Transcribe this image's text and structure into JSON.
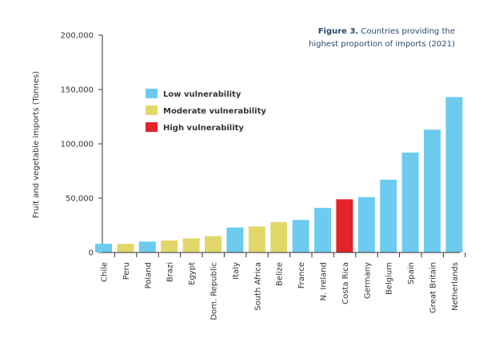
{
  "chart_data": {
    "type": "bar",
    "title_bold": "Figure 3.",
    "title_line1": "Countries providing the",
    "title_line2": "highest proportion of imports (2021)",
    "ylabel": "Fruit and vegetable imports (Tonnes)",
    "xlabel": "",
    "ylim": [
      0,
      200000
    ],
    "yticks": [
      0,
      50000,
      100000,
      150000,
      200000
    ],
    "ytick_labels": [
      "0",
      "50,000",
      "100,000",
      "150,000",
      "200,000"
    ],
    "grid": false,
    "legend_placement": "upper-left",
    "legend": [
      {
        "key": "low",
        "label": "Low vulnerability",
        "color": "#6ccbee"
      },
      {
        "key": "moderate",
        "label": "Moderate vulnerability",
        "color": "#e2d86a"
      },
      {
        "key": "high",
        "label": "High vulnerability",
        "color": "#e42229"
      }
    ],
    "categories": [
      "Chile",
      "Peru",
      "Poland",
      "Brazi",
      "Egypt",
      "Dom. Republic",
      "Italy",
      "South Africa",
      "Belize",
      "France",
      "N. Ireland",
      "Costa Rica",
      "Germany",
      "Belgium",
      "Spain",
      "Great Britain",
      "Netherlands"
    ],
    "values": [
      8000,
      8000,
      10000,
      11000,
      13000,
      15000,
      23000,
      24000,
      28000,
      30000,
      41000,
      49000,
      51000,
      67000,
      92000,
      113000,
      143000
    ],
    "vulnerability": [
      "low",
      "moderate",
      "low",
      "moderate",
      "moderate",
      "moderate",
      "low",
      "moderate",
      "moderate",
      "low",
      "low",
      "high",
      "low",
      "low",
      "low",
      "low",
      "low"
    ]
  }
}
